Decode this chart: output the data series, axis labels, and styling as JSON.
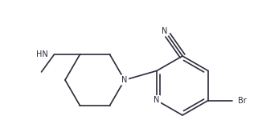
{
  "bg": "#ffffff",
  "lc": "#2b2b3b",
  "lw": 1.2,
  "fs": 7.0,
  "figsize": [
    3.16,
    1.55
  ],
  "dpi": 100,
  "xlim": [
    0,
    316
  ],
  "ylim": [
    0,
    155
  ]
}
